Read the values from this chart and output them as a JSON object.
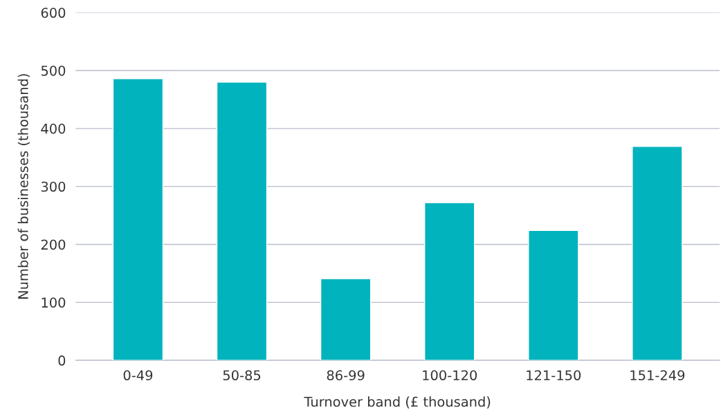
{
  "chart_data": {
    "type": "bar",
    "xlabel": "Turnover band (£ thousand)",
    "ylabel": "Number of businesses (thousand)",
    "categories": [
      "0-49",
      "50-85",
      "86-99",
      "100-120",
      "121-150",
      "151-249"
    ],
    "values": [
      486,
      480,
      141,
      272,
      224,
      369
    ],
    "color": "#00b3bd",
    "ylim": [
      0,
      600
    ],
    "yticks": [
      0,
      100,
      200,
      300,
      400,
      500,
      600
    ],
    "grid": "y"
  }
}
